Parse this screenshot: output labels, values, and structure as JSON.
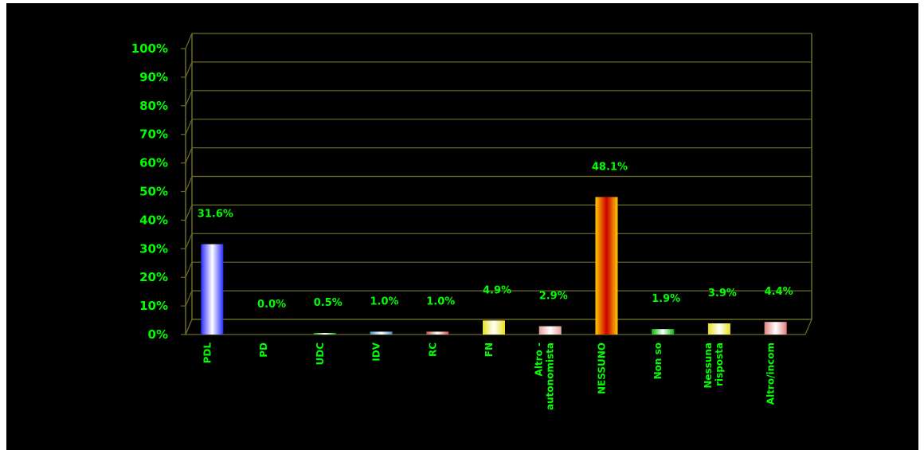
{
  "chart_data": {
    "type": "bar",
    "title": "",
    "xlabel": "",
    "ylabel": "",
    "ylim": [
      0,
      100
    ],
    "yticks": [
      "0%",
      "10%",
      "20%",
      "30%",
      "40%",
      "50%",
      "60%",
      "70%",
      "80%",
      "90%",
      "100%"
    ],
    "grid": true,
    "categories": [
      [
        "PDL"
      ],
      [
        "PD"
      ],
      [
        "UDC"
      ],
      [
        "IDV"
      ],
      [
        "RC"
      ],
      [
        "FN"
      ],
      [
        "Altro -",
        "autonomista"
      ],
      [
        "NESSUNO"
      ],
      [
        "Non so"
      ],
      [
        "Nessuna",
        "risposta"
      ],
      [
        "Altro/incom"
      ]
    ],
    "values": [
      31.6,
      0.0,
      0.5,
      1.0,
      1.0,
      4.9,
      2.9,
      48.1,
      1.9,
      3.9,
      4.4
    ],
    "data_labels": [
      "31.6%",
      "0.0%",
      "0.5%",
      "1.0%",
      "1.0%",
      "4.9%",
      "2.9%",
      "48.1%",
      "1.9%",
      "3.9%",
      "4.4%"
    ],
    "colors": [
      "#2a2aff",
      "#888888",
      "#00aa00",
      "#4a90c0",
      "#c85050",
      "#e8e020",
      "#e8a0a0",
      "#ffcc00",
      "#00bb00",
      "#e8e020",
      "#e08080"
    ],
    "text_color": "#00ff00",
    "grid_color": "#6b6b2a"
  }
}
